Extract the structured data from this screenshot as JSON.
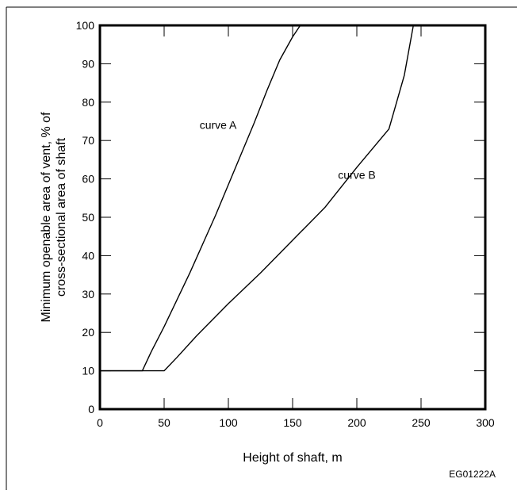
{
  "figure": {
    "code": "EG01222A"
  },
  "chart_data": {
    "type": "line",
    "title": "",
    "xlabel": "Height of shaft, m",
    "ylabel_lines": [
      "Minimum openable area of vent, % of",
      "cross-sectional area of shaft"
    ],
    "xlim": [
      0,
      300
    ],
    "ylim": [
      0,
      100
    ],
    "x_ticks": [
      0,
      50,
      100,
      150,
      200,
      250,
      300
    ],
    "y_ticks": [
      0,
      10,
      20,
      30,
      40,
      50,
      60,
      70,
      80,
      90,
      100
    ],
    "grid": false,
    "legend": "none",
    "series": [
      {
        "name": "curve A",
        "color": "#000000",
        "points": [
          [
            0,
            10
          ],
          [
            33,
            10
          ],
          [
            40,
            15
          ],
          [
            50,
            21.5
          ],
          [
            60,
            28.5
          ],
          [
            70,
            35.5
          ],
          [
            80,
            43
          ],
          [
            90,
            50.5
          ],
          [
            100,
            58.5
          ],
          [
            110,
            66.5
          ],
          [
            120,
            74.5
          ],
          [
            130,
            83
          ],
          [
            140,
            91
          ],
          [
            150,
            97
          ],
          [
            156,
            100
          ]
        ]
      },
      {
        "name": "curve B",
        "color": "#000000",
        "points": [
          [
            0,
            10
          ],
          [
            50,
            10
          ],
          [
            60,
            13.5
          ],
          [
            75,
            19
          ],
          [
            100,
            27.5
          ],
          [
            125,
            35.5
          ],
          [
            150,
            44
          ],
          [
            175,
            52.5
          ],
          [
            200,
            63
          ],
          [
            225,
            73
          ],
          [
            237,
            87
          ],
          [
            244,
            100
          ]
        ]
      }
    ],
    "annotations": [
      {
        "text": "curve A",
        "x": 92,
        "y": 73
      },
      {
        "text": "curve B",
        "x": 200,
        "y": 60
      }
    ]
  }
}
